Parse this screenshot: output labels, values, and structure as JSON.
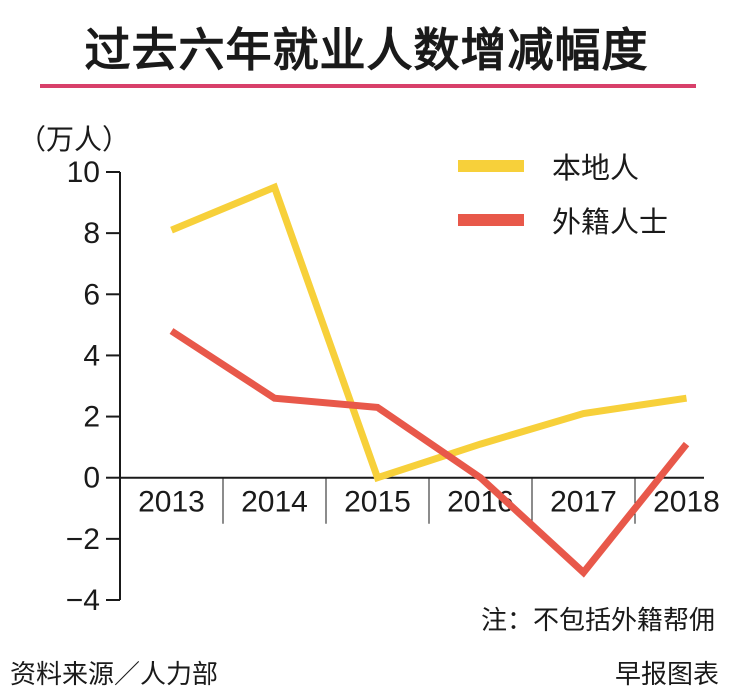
{
  "title": "过去六年就业人数增减幅度",
  "unit_label": "（万人）",
  "note": "注：不包括外籍帮佣",
  "source": "资料来源／人力部",
  "credit": "早报图表",
  "colors": {
    "local": "#f7d03a",
    "foreign": "#e8584a",
    "title_rule": "#d8406a",
    "axis": "#1a1a1a"
  },
  "chart_data": {
    "type": "line",
    "title": "过去六年就业人数增减幅度",
    "ylabel": "（万人）",
    "xlabel": "",
    "categories": [
      "2013",
      "2014",
      "2015",
      "2016",
      "2017",
      "2018"
    ],
    "ylim": [
      -4,
      10
    ],
    "yticks": [
      -4,
      -2,
      0,
      2,
      4,
      6,
      8,
      10
    ],
    "ytick_labels": [
      "−4",
      "−2",
      "0",
      "2",
      "4",
      "6",
      "8",
      "10"
    ],
    "grid": false,
    "legend_position": "top-right",
    "series": [
      {
        "name": "本地人",
        "color": "#f7d03a",
        "values": [
          8.1,
          9.5,
          0,
          1.1,
          2.1,
          2.6
        ]
      },
      {
        "name": "外籍人士",
        "color": "#e8584a",
        "values": [
          4.8,
          2.6,
          2.3,
          0,
          -3.1,
          1.1
        ]
      }
    ]
  }
}
